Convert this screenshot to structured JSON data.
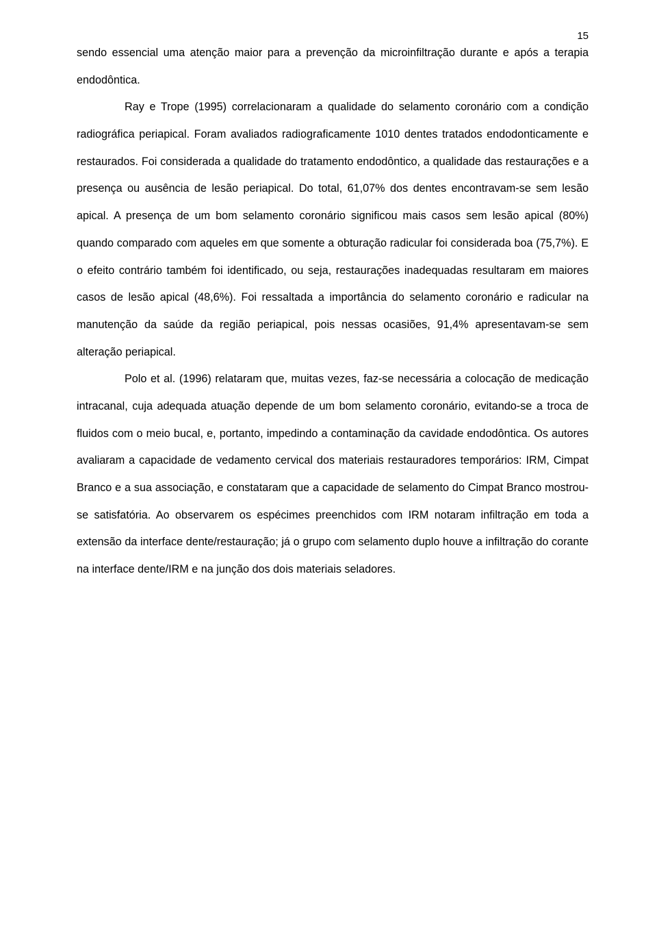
{
  "page_number": "15",
  "paragraph1": "sendo essencial uma atenção maior para a prevenção da microinfiltração durante e após a terapia endodôntica.",
  "paragraph2": "Ray e Trope (1995) correlacionaram a qualidade do selamento coronário com a condição radiográfica periapical. Foram avaliados radiograficamente 1010 dentes tratados endodonticamente e restaurados. Foi considerada a qualidade do tratamento endodôntico, a qualidade das restaurações e a presença ou ausência de lesão periapical. Do total, 61,07% dos dentes encontravam-se sem lesão apical. A presença de um bom selamento coronário significou mais casos sem lesão apical (80%) quando comparado com aqueles em que somente a obturação radicular foi considerada boa (75,7%). E o efeito contrário também foi identificado, ou seja, restaurações inadequadas resultaram em maiores casos de lesão apical (48,6%). Foi ressaltada a importância do selamento coronário e radicular na manutenção da saúde da região periapical, pois nessas ocasiões, 91,4% apresentavam-se sem alteração periapical.",
  "paragraph3": "Polo et al. (1996) relataram que, muitas vezes, faz-se necessária a colocação de medicação intracanal, cuja adequada atuação depende de um bom selamento coronário, evitando-se a troca de fluidos com o meio bucal, e, portanto, impedindo a contaminação da cavidade endodôntica. Os autores avaliaram a capacidade de vedamento cervical dos materiais restauradores temporários: IRM, Cimpat Branco e a sua associação, e constataram que a capacidade de selamento do Cimpat Branco mostrou-se satisfatória. Ao observarem os espécimes preenchidos com IRM notaram infiltração em toda a extensão da interface dente/restauração; já o grupo com selamento duplo houve a infiltração do corante na interface dente/IRM e na junção dos dois materiais seladores."
}
